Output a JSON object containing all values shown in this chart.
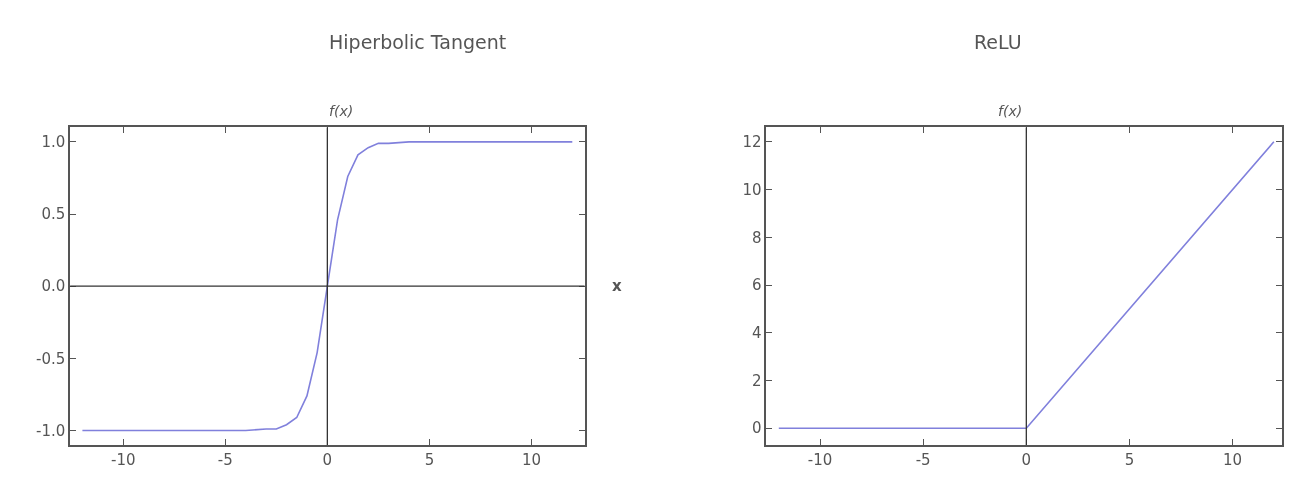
{
  "chart_data": [
    {
      "type": "line",
      "title": "Hiperbolic Tangent",
      "ylabel": "f(x)",
      "xlabel": "x",
      "xlim": [
        -12.6,
        12.6
      ],
      "ylim": [
        -1.1,
        1.1
      ],
      "xticks": [
        -10,
        -5,
        0,
        5,
        10
      ],
      "yticks": [
        {
          "value": -1,
          "label": "-1.0"
        },
        {
          "value": -0.5,
          "label": "-0.5"
        },
        {
          "value": 0,
          "label": "0.0"
        },
        {
          "value": 0.5,
          "label": "0.5"
        },
        {
          "value": 1,
          "label": "1.0"
        }
      ],
      "series": [
        {
          "color": "#8080dc",
          "x": [
            -12,
            -4,
            -3,
            -2.5,
            -2,
            -1.5,
            -1,
            -0.5,
            0,
            0.5,
            1,
            1.5,
            2,
            2.5,
            3,
            4,
            12
          ],
          "values": [
            -1,
            -1,
            -0.99,
            -0.99,
            -0.96,
            -0.91,
            -0.76,
            -0.46,
            0,
            0.46,
            0.76,
            0.91,
            0.96,
            0.99,
            0.99,
            1,
            1
          ]
        }
      ],
      "ref_lines": [
        {
          "axis": "x",
          "value": 0,
          "color": "#333333"
        },
        {
          "axis": "y",
          "value": 0,
          "color": "#333333"
        }
      ]
    },
    {
      "type": "line",
      "title": "ReLU",
      "ylabel": "f(x)",
      "xlim": [
        -12.6,
        12.4
      ],
      "ylim": [
        -0.7,
        12.6
      ],
      "xticks": [
        -10,
        -5,
        0,
        5,
        10
      ],
      "yticks": [
        0,
        2,
        4,
        6,
        8,
        10,
        12
      ],
      "series": [
        {
          "color": "#8080dc",
          "x": [
            -12,
            0,
            12
          ],
          "values": [
            0,
            0,
            12
          ]
        }
      ],
      "ref_lines": [
        {
          "axis": "x",
          "value": 0,
          "color": "#333333"
        }
      ]
    }
  ]
}
